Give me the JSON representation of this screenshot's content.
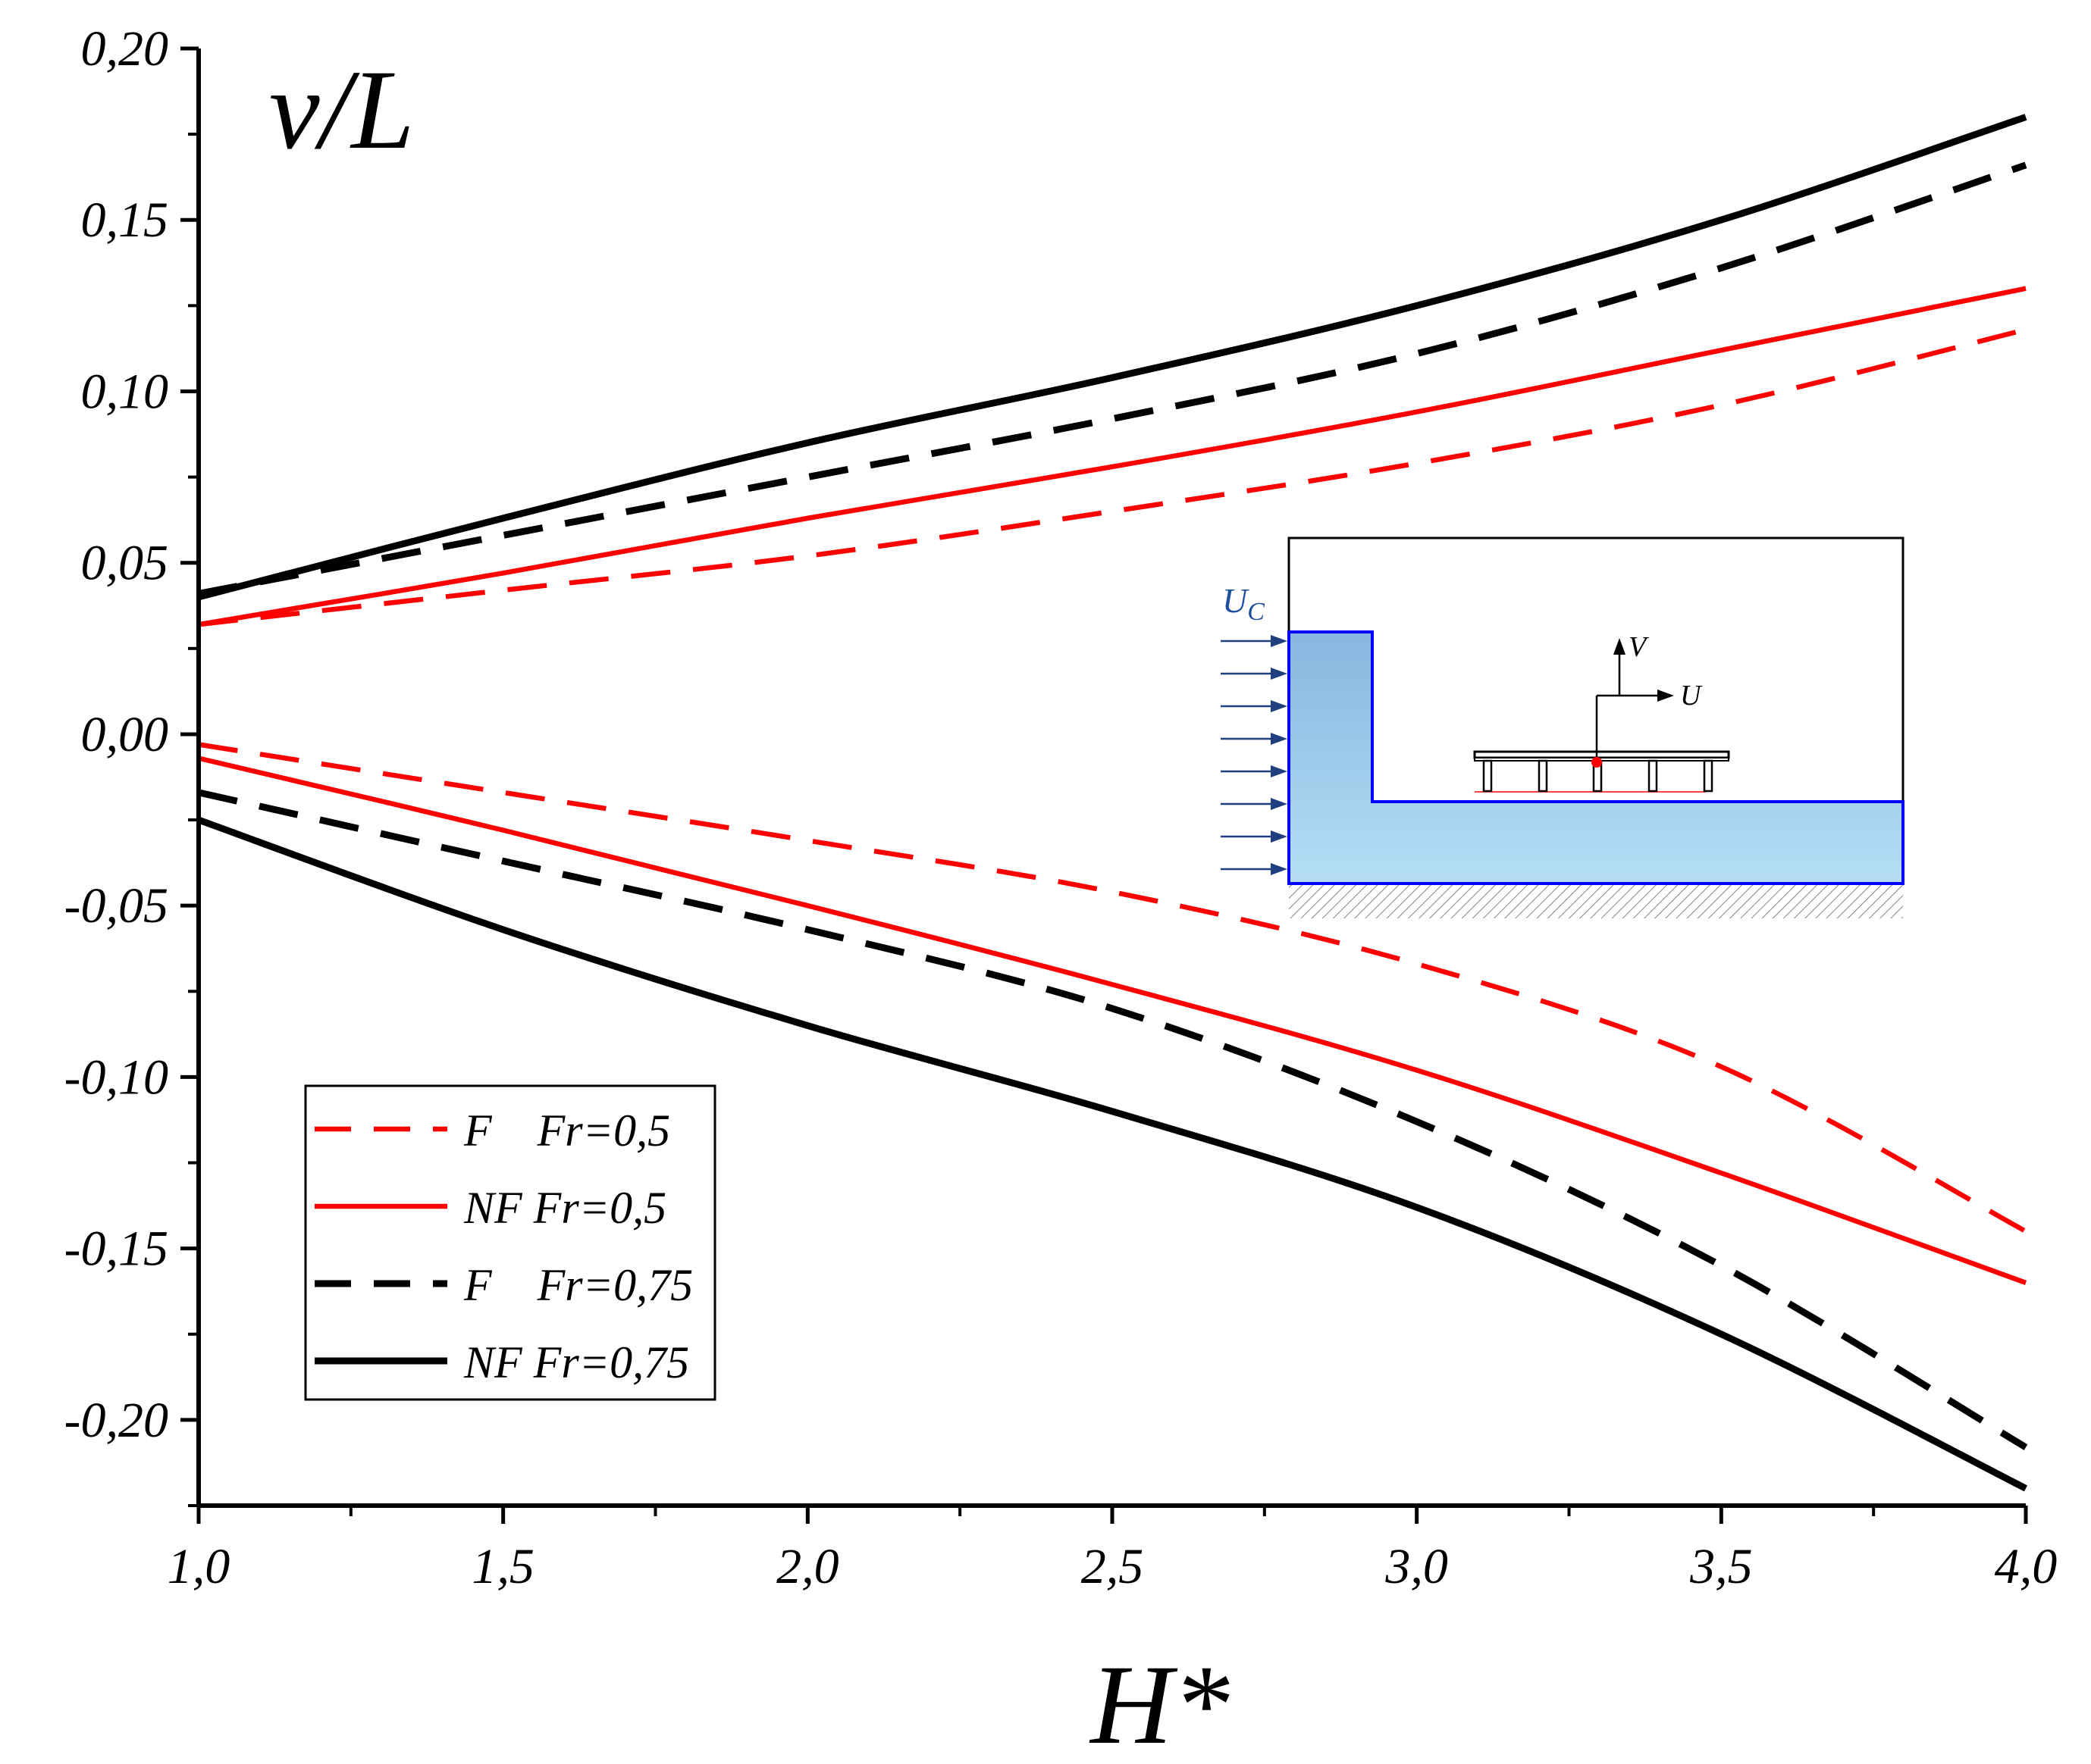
{
  "chart_data": {
    "type": "line",
    "title": "",
    "ylabel": "v/L",
    "xlabel": "H*",
    "xlim": [
      1.0,
      4.0
    ],
    "ylim": [
      -0.225,
      0.2
    ],
    "x_ticks": [
      1.0,
      1.5,
      2.0,
      2.5,
      3.0,
      3.5,
      4.0
    ],
    "x_tick_labels": [
      "1,0",
      "1,5",
      "2,0",
      "2,5",
      "3,0",
      "3,5",
      "4,0"
    ],
    "y_ticks": [
      0.2,
      0.15,
      0.1,
      0.05,
      0.0,
      -0.05,
      -0.1,
      -0.15,
      -0.2
    ],
    "y_tick_labels": [
      "0,20",
      "0,15",
      "0,10",
      "0,05",
      "0,00",
      "-0,05",
      "-0,10",
      "-0,15",
      "-0,20"
    ],
    "x": [
      1.0,
      1.5,
      2.0,
      2.5,
      3.0,
      3.5,
      4.0
    ],
    "series": [
      {
        "name": "F Fr=0,5 (upper)",
        "color": "#ff0000",
        "dash": true,
        "legend": false,
        "values": [
          0.032,
          0.042,
          0.052,
          0.065,
          0.079,
          0.096,
          0.118
        ]
      },
      {
        "name": "NF Fr=0,5 (upper)",
        "color": "#ff0000",
        "dash": false,
        "legend": false,
        "values": [
          0.032,
          0.047,
          0.063,
          0.078,
          0.094,
          0.112,
          0.13
        ]
      },
      {
        "name": "F Fr=0,75 (upper)",
        "color": "#000000",
        "dash": true,
        "legend": false,
        "values": [
          0.041,
          0.058,
          0.075,
          0.092,
          0.111,
          0.136,
          0.166
        ]
      },
      {
        "name": "NF Fr=0,75 (upper)",
        "color": "#000000",
        "dash": false,
        "legend": false,
        "values": [
          0.04,
          0.063,
          0.085,
          0.104,
          0.125,
          0.15,
          0.18
        ]
      },
      {
        "name": "F Fr=0,5 (lower)",
        "color": "#ff0000",
        "dash": true,
        "legend": false,
        "values": [
          -0.003,
          -0.017,
          -0.031,
          -0.046,
          -0.067,
          -0.097,
          -0.145
        ]
      },
      {
        "name": "NF Fr=0,5 (lower)",
        "color": "#ff0000",
        "dash": false,
        "legend": false,
        "values": [
          -0.007,
          -0.028,
          -0.05,
          -0.073,
          -0.098,
          -0.128,
          -0.16
        ]
      },
      {
        "name": "F Fr=0,75 (lower)",
        "color": "#000000",
        "dash": true,
        "legend": false,
        "values": [
          -0.017,
          -0.037,
          -0.057,
          -0.08,
          -0.113,
          -0.155,
          -0.208
        ]
      },
      {
        "name": "NF Fr=0,75 (lower)",
        "color": "#000000",
        "dash": false,
        "legend": false,
        "values": [
          -0.025,
          -0.057,
          -0.085,
          -0.11,
          -0.138,
          -0.175,
          -0.22
        ]
      }
    ],
    "legend": {
      "placement": "bottom-left",
      "entries": [
        {
          "label": "F    Fr=0,5",
          "color": "#ff0000",
          "dash": true
        },
        {
          "label": "NF Fr=0,5",
          "color": "#ff0000",
          "dash": false
        },
        {
          "label": "F    Fr=0,75",
          "color": "#000000",
          "dash": true
        },
        {
          "label": "NF Fr=0,75",
          "color": "#000000",
          "dash": false
        }
      ]
    },
    "inset": {
      "description_labels": {
        "flow": "U",
        "flow_sub": "C",
        "vertical": "V",
        "horizontal": "U"
      },
      "water_color": "#9ecfee",
      "outline_color": "#0000ff",
      "arrow_color": "#1f3f7f",
      "marker_color": "#ff0000"
    }
  }
}
